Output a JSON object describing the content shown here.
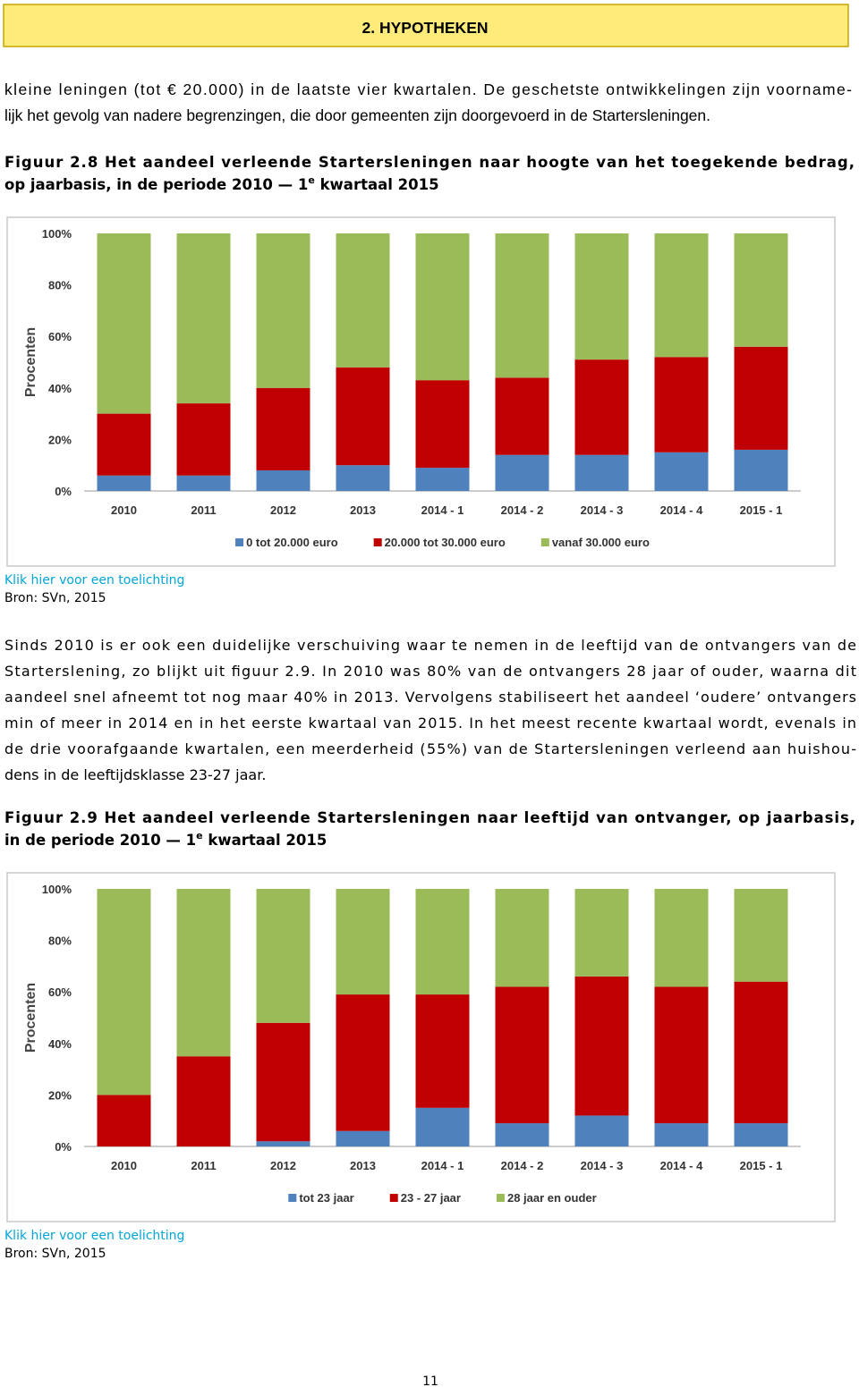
{
  "header": {
    "title": "2. HYPOTHEKEN"
  },
  "intro": {
    "lines": [
      "kleine leningen (tot € 20.000) in de laatste vier kwartalen. De geschetste ontwikkelingen zijn voorname-",
      "lijk het gevolg van nadere begrenzingen, die door gemeenten zijn doorgevoerd in de Startersleningen."
    ]
  },
  "figures": [
    {
      "caption": {
        "line1": "Figuur 2.8 Het aandeel verleende Startersleningen naar hoogte van het toegekende bedrag,",
        "line2_before": "op jaarbasis, in de periode 2010 — 1",
        "line2_sup": "e",
        "line2_after": " kwartaal 2015"
      },
      "link": "Klik hier voor een toelichting",
      "source": "Bron: SVn, 2015"
    },
    {
      "caption": {
        "line1": "Figuur 2.9 Het aandeel verleende Startersleningen naar leeftijd van ontvanger, op jaarbasis,",
        "line2_before": "in de periode 2010 — 1",
        "line2_sup": "e",
        "line2_after": " kwartaal 2015"
      },
      "link": "Klik hier voor een toelichting",
      "source": "Bron: SVn, 2015"
    }
  ],
  "body": {
    "lines": [
      "Sinds 2010 is er ook een duidelijke verschuiving waar te nemen in de leeftijd van de ontvangers van de",
      "Starterslening, zo blijkt uit figuur 2.9. In 2010 was 80% van de ontvangers 28 jaar of ouder, waarna dit",
      "aandeel snel afneemt tot nog maar 40% in 2013. Vervolgens stabiliseert het aandeel ‘oudere’ ontvangers",
      "min of meer in 2014 en in het eerste kwartaal van 2015. In het meest recente kwartaal wordt, evenals in",
      "de drie voorafgaande kwartalen, een meerderheid (55%) van de Startersleningen verleend aan huishou-",
      "dens in de leeftijdsklasse 23-27 jaar."
    ]
  },
  "page_number": "11",
  "chart_data": [
    {
      "type": "stacked_bar",
      "y_label": "Procenten",
      "categories": [
        "2010",
        "2011",
        "2012",
        "2013",
        "2014 - 1",
        "2014 - 2",
        "2014 - 3",
        "2014 - 4",
        "2015 - 1"
      ],
      "series": [
        {
          "name": "0 tot 20.000 euro",
          "color": "#4f81bd",
          "values": [
            6,
            6,
            8,
            10,
            9,
            14,
            14,
            15,
            16
          ]
        },
        {
          "name": "20.000 tot 30.000 euro",
          "color": "#c00000",
          "values": [
            24,
            28,
            32,
            38,
            34,
            30,
            37,
            37,
            40
          ]
        },
        {
          "name": "vanaf 30.000 euro",
          "color": "#9bbb59",
          "values": [
            70,
            66,
            60,
            52,
            57,
            56,
            49,
            48,
            44
          ]
        }
      ],
      "ylim": [
        0,
        100
      ],
      "yticks": [
        {
          "value": 0,
          "label": "0%"
        },
        {
          "value": 20,
          "label": "20%"
        },
        {
          "value": 40,
          "label": "40%"
        },
        {
          "value": 60,
          "label": "60%"
        },
        {
          "value": 80,
          "label": "80%"
        },
        {
          "value": 100,
          "label": "100%"
        }
      ],
      "grid": false,
      "legend": "bottom"
    },
    {
      "type": "stacked_bar",
      "y_label": "Procenten",
      "categories": [
        "2010",
        "2011",
        "2012",
        "2013",
        "2014 - 1",
        "2014 - 2",
        "2014 - 3",
        "2014 - 4",
        "2015 - 1"
      ],
      "series": [
        {
          "name": "tot 23 jaar",
          "color": "#4f81bd",
          "values": [
            0,
            0,
            2,
            6,
            15,
            9,
            12,
            9,
            9
          ]
        },
        {
          "name": "23 - 27 jaar",
          "color": "#c00000",
          "values": [
            20,
            35,
            46,
            53,
            44,
            53,
            54,
            53,
            55
          ]
        },
        {
          "name": "28 jaar en ouder",
          "color": "#9bbb59",
          "values": [
            80,
            65,
            52,
            41,
            41,
            38,
            34,
            38,
            36
          ]
        }
      ],
      "ylim": [
        0,
        100
      ],
      "yticks": [
        {
          "value": 0,
          "label": "0%"
        },
        {
          "value": 20,
          "label": "20%"
        },
        {
          "value": 40,
          "label": "40%"
        },
        {
          "value": 60,
          "label": "60%"
        },
        {
          "value": 80,
          "label": "80%"
        },
        {
          "value": 100,
          "label": "100%"
        }
      ],
      "grid": false,
      "legend": "bottom"
    }
  ]
}
